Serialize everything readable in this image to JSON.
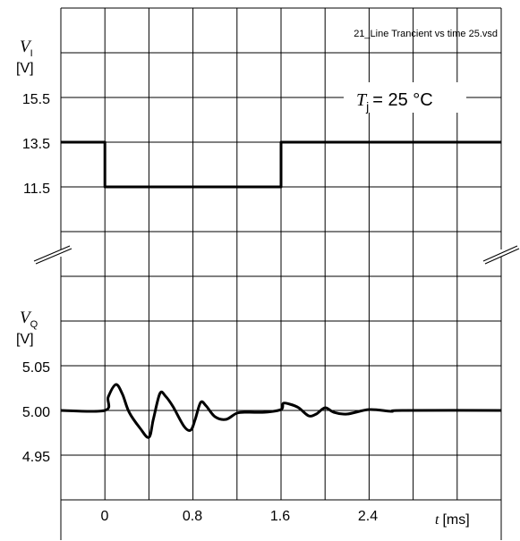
{
  "file_label": "21_Line Trancient vs time 25.vsd",
  "temperature_label": {
    "symbol": "T",
    "subscript": "j",
    "value": "= 25 °C"
  },
  "chart_data": [
    {
      "type": "line",
      "panel": "input",
      "ylabel": {
        "symbol": "V",
        "subscript": "I",
        "unit": "[V]"
      },
      "yticks": [
        "15.5",
        "13.5",
        "11.5"
      ],
      "ylim": [
        9.5,
        19.5
      ],
      "series": [
        {
          "x": [
            -0.4,
            0,
            0,
            1.6,
            1.6,
            3.6
          ],
          "y": [
            13.5,
            13.5,
            11.5,
            11.5,
            13.5,
            13.5
          ]
        }
      ]
    },
    {
      "type": "line",
      "panel": "output",
      "ylabel": {
        "symbol": "V",
        "subscript": "Q",
        "unit": "[V]"
      },
      "yticks": [
        "5.05",
        "5.00",
        "4.95"
      ],
      "ylim": [
        4.9,
        5.1
      ],
      "xlabel": {
        "symbol": "t",
        "unit": "[ms]"
      },
      "xticks": [
        "0",
        "0.8",
        "1.6",
        "2.4"
      ],
      "xlim": [
        -0.4,
        3.6
      ],
      "series": [
        {
          "x": [
            -0.4,
            0,
            0.03,
            0.1,
            0.16,
            0.22,
            0.32,
            0.4,
            0.44,
            0.5,
            0.55,
            0.62,
            0.72,
            0.78,
            0.82,
            0.87,
            0.92,
            1.0,
            1.1,
            1.2,
            1.3,
            1.45,
            1.6,
            1.62,
            1.68,
            1.76,
            1.85,
            1.92,
            2.0,
            2.08,
            2.2,
            2.4,
            2.6,
            2.7,
            3.6
          ],
          "y": [
            5.0,
            5.0,
            5.015,
            5.029,
            5.018,
            4.998,
            4.98,
            4.97,
            4.99,
            5.019,
            5.016,
            5.004,
            4.982,
            4.978,
            4.99,
            5.009,
            5.005,
            4.993,
            4.99,
            4.997,
            4.998,
            4.998,
            5.001,
            5.008,
            5.007,
            5.003,
            4.994,
            4.996,
            5.003,
            4.998,
            4.996,
            5.001,
            4.999,
            5.0,
            5.0
          ]
        }
      ]
    }
  ]
}
